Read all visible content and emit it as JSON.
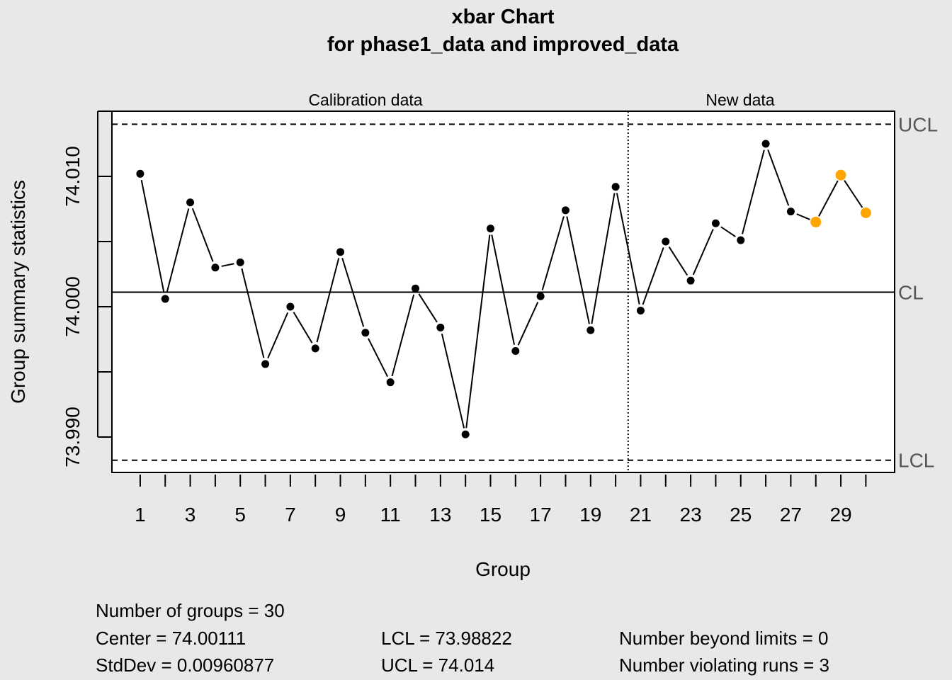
{
  "chart_data": {
    "type": "line",
    "title": "xbar Chart",
    "subtitle": "for phase1_data and improved_data",
    "xlabel": "Group",
    "ylabel": "Group summary statistics",
    "section_labels": [
      "Calibration data",
      "New data"
    ],
    "phase_split_after_group": 20,
    "x": [
      1,
      2,
      3,
      4,
      5,
      6,
      7,
      8,
      9,
      10,
      11,
      12,
      13,
      14,
      15,
      16,
      17,
      18,
      19,
      20,
      21,
      22,
      23,
      24,
      25,
      26,
      27,
      28,
      29,
      30
    ],
    "values": [
      74.0102,
      74.0006,
      74.008,
      74.003,
      74.0034,
      73.9956,
      74.0,
      73.9968,
      74.0042,
      73.998,
      73.9942,
      74.0014,
      73.9984,
      73.9902,
      74.006,
      73.9966,
      74.0008,
      74.0074,
      73.9982,
      74.0092,
      73.9997,
      74.005,
      74.002,
      74.0064,
      74.0051,
      74.0125,
      74.0073,
      74.0065,
      74.0101,
      74.0072
    ],
    "highlighted_groups": [
      28,
      29,
      30
    ],
    "x_tick_labels": [
      "1",
      "3",
      "5",
      "7",
      "9",
      "11",
      "13",
      "15",
      "17",
      "19",
      "21",
      "23",
      "25",
      "27",
      "29"
    ],
    "y_ticks": [
      73.99,
      73.995,
      74.0,
      74.005,
      74.01,
      74.015
    ],
    "y_tick_labels": [
      "73.990",
      "74.000",
      "74.010"
    ],
    "ylim": [
      73.98728,
      74.015
    ],
    "xlim": [
      -0.13,
      31.15
    ],
    "limits": {
      "UCL": 74.014,
      "CL": 74.00111,
      "LCL": 73.98822
    },
    "limit_labels": {
      "UCL": "UCL",
      "CL": "CL",
      "LCL": "LCL"
    },
    "grid": false,
    "colors": {
      "point": "#000000",
      "highlight": "#FFA500",
      "background": "#e8e8e8",
      "panel": "#ffffff"
    }
  },
  "stats": {
    "groups": "Number of groups = 30",
    "center": "Center = 74.00111",
    "stddev": "StdDev = 0.00960877",
    "lcl": "LCL = 73.98822",
    "ucl": "UCL = 74.014",
    "beyond": "Number beyond limits = 0",
    "runs": "Number violating runs = 3"
  }
}
